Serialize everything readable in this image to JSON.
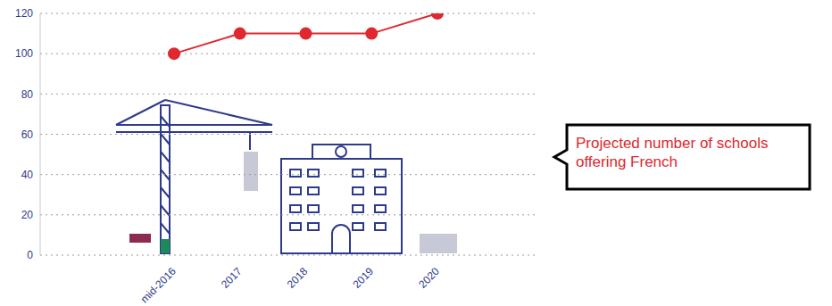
{
  "chart_data": {
    "type": "line",
    "categories": [
      "mid-2016",
      "2017",
      "2018",
      "2019",
      "2020"
    ],
    "values": [
      100,
      110,
      110,
      110,
      120
    ],
    "color": "#e0282e",
    "ylim": [
      0,
      120
    ],
    "yticks": [
      0,
      20,
      40,
      60,
      80,
      100,
      120
    ],
    "grid": true,
    "marker": "circle",
    "annotations": [
      "Projected number of schools offering French"
    ]
  }
}
